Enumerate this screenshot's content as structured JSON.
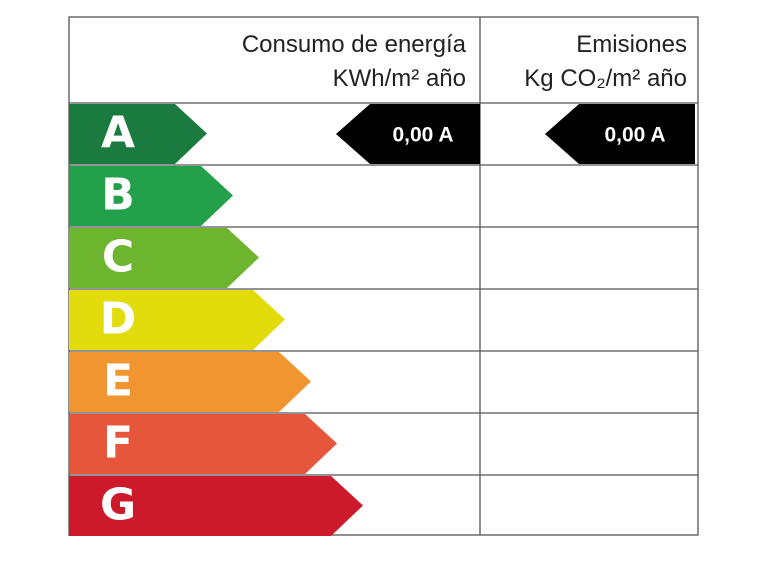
{
  "header": {
    "consumption_title": "Consumo de energía",
    "consumption_unit": "KWh/m² año",
    "emissions_title": "Emisiones",
    "emissions_unit": "Kg CO₂/m² año"
  },
  "ratings": [
    "A",
    "B",
    "C",
    "D",
    "E",
    "F",
    "G"
  ],
  "rating_colors": [
    "#1b7a3e",
    "#23a04a",
    "#6db42f",
    "#e3dc0d",
    "#f0952f",
    "#e6563a",
    "#cd1a2b"
  ],
  "consumption_indicator": "0,00 A",
  "emissions_indicator": "0,00 A"
}
